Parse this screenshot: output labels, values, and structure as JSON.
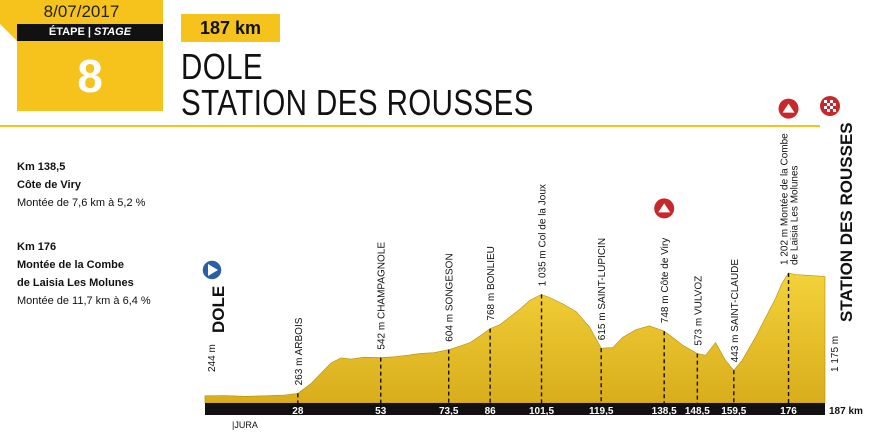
{
  "header": {
    "date": "8/07/2017",
    "stage_label_fr": "ÉTAPE",
    "stage_label_sep": " | ",
    "stage_label_en": "STAGE",
    "stage_number": "8",
    "distance": "187 km",
    "start_town": "DOLE",
    "finish_town": "STATION DES ROUSSES"
  },
  "climbs": [
    {
      "km": "Km 138,5",
      "name_lines": [
        "Côte de Viry"
      ],
      "detail": "Montée de 7,6 km à 5,2 %"
    },
    {
      "km": "Km 176",
      "name_lines": [
        "Montée de la Combe",
        "de Laisia Les Molunes"
      ],
      "detail": "Montée de 11,7 km à 6,4 %"
    }
  ],
  "profile": {
    "start_label": "DOLE",
    "start_altitude": "244 m",
    "finish_label": "STATION DES ROUSSES",
    "finish_altitude": "1 175 m",
    "total_distance": "187 km",
    "region": "JURA",
    "fill_color": "#e8c22e",
    "axis_color": "#111111",
    "points": [
      {
        "km": 28,
        "label": "28",
        "name": "263 m  ARBOIS"
      },
      {
        "km": 53,
        "label": "53",
        "name": "542 m  CHAMPAGNOLE"
      },
      {
        "km": 73.5,
        "label": "73,5",
        "name": "604 m  SONGESON"
      },
      {
        "km": 86,
        "label": "86",
        "name": "768 m  BONLIEU"
      },
      {
        "km": 101.5,
        "label": "101,5",
        "name": "1 035 m  Col de la Joux"
      },
      {
        "km": 119.5,
        "label": "119,5",
        "name": "615 m  SAINT-LUPICIN"
      },
      {
        "km": 138.5,
        "label": "138,5",
        "name": "748 m  Côte de Viry",
        "climb_icon": "mountain-icon"
      },
      {
        "km": 148.5,
        "label": "148,5",
        "name": "573 m  VULVOZ"
      },
      {
        "km": 159.5,
        "label": "159,5",
        "name": "443 m  SAINT-CLAUDE"
      },
      {
        "km": 176,
        "label": "176",
        "name_lines": [
          "1 202 m  Montée de la Combe",
          "de Laisia Les Molunes"
        ],
        "climb_icon": "mountain-icon"
      }
    ],
    "elevation": [
      [
        0,
        244
      ],
      [
        6,
        246
      ],
      [
        12,
        240
      ],
      [
        18,
        244
      ],
      [
        24,
        250
      ],
      [
        28,
        263
      ],
      [
        32,
        340
      ],
      [
        35,
        420
      ],
      [
        38,
        500
      ],
      [
        41,
        540
      ],
      [
        44,
        530
      ],
      [
        48,
        545
      ],
      [
        53,
        542
      ],
      [
        57,
        548
      ],
      [
        61,
        560
      ],
      [
        65,
        575
      ],
      [
        69,
        580
      ],
      [
        73.5,
        604
      ],
      [
        76,
        625
      ],
      [
        80,
        660
      ],
      [
        84,
        730
      ],
      [
        86,
        768
      ],
      [
        89,
        800
      ],
      [
        92,
        860
      ],
      [
        95,
        920
      ],
      [
        98,
        990
      ],
      [
        101.5,
        1035
      ],
      [
        104,
        1010
      ],
      [
        108,
        960
      ],
      [
        112,
        900
      ],
      [
        116,
        780
      ],
      [
        119.5,
        615
      ],
      [
        123,
        620
      ],
      [
        126,
        700
      ],
      [
        130,
        760
      ],
      [
        134,
        790
      ],
      [
        138.5,
        748
      ],
      [
        141,
        700
      ],
      [
        144,
        640
      ],
      [
        148.5,
        573
      ],
      [
        151,
        560
      ],
      [
        154,
        660
      ],
      [
        157,
        520
      ],
      [
        159.5,
        443
      ],
      [
        162,
        520
      ],
      [
        166,
        700
      ],
      [
        169,
        850
      ],
      [
        172,
        1000
      ],
      [
        174,
        1120
      ],
      [
        176,
        1202
      ],
      [
        178,
        1190
      ],
      [
        181,
        1185
      ],
      [
        184,
        1180
      ],
      [
        187,
        1175
      ]
    ]
  }
}
